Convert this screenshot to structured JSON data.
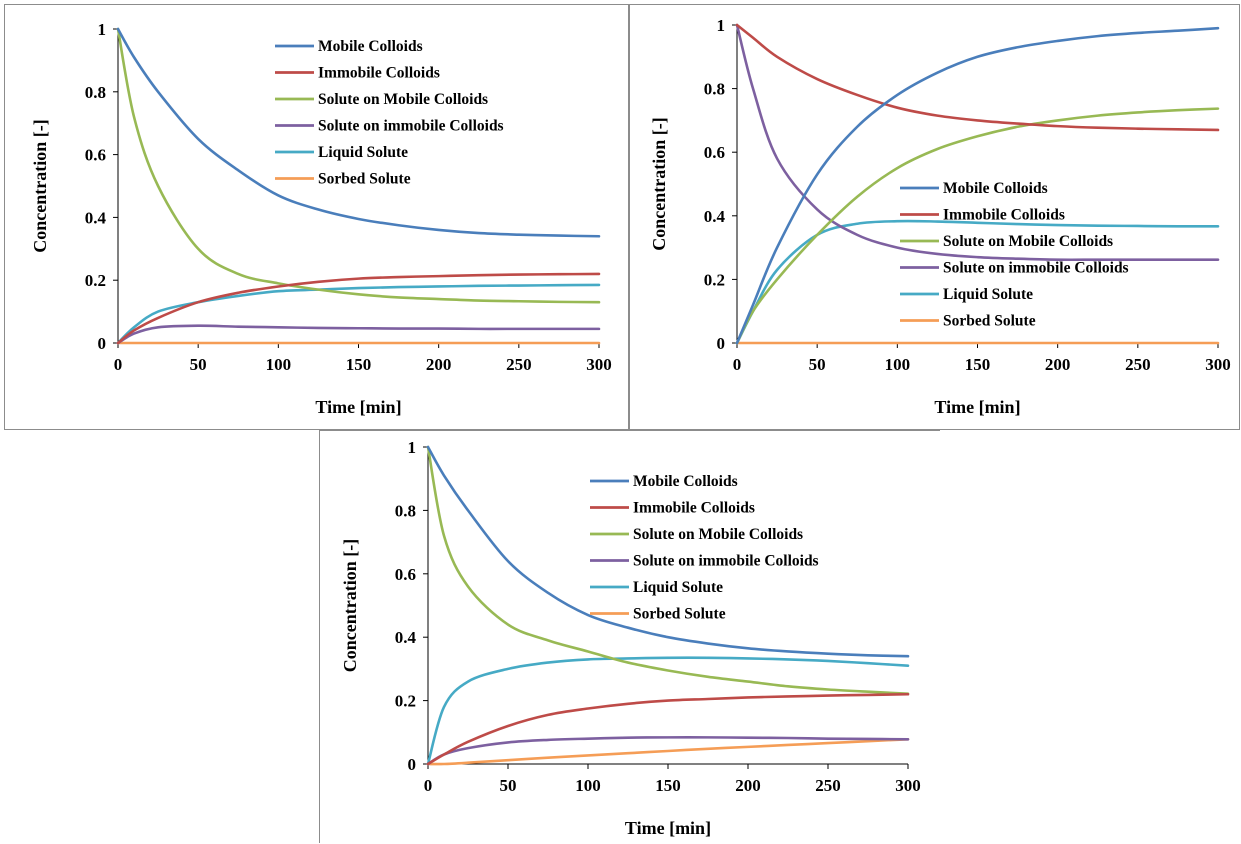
{
  "chart_data": [
    {
      "type": "line",
      "xlabel": "Time [min]",
      "ylabel": "Concentration [-]",
      "xlim": [
        0,
        300
      ],
      "ylim": [
        0,
        1
      ],
      "xticks": [
        "0",
        "50",
        "100",
        "150",
        "200",
        "250",
        "300"
      ],
      "yticks": [
        "0",
        "0.2",
        "0.4",
        "0.6",
        "0.8",
        "1"
      ],
      "legend": "top-right",
      "x": [
        0,
        10,
        25,
        50,
        75,
        100,
        125,
        150,
        175,
        200,
        225,
        250,
        275,
        300
      ],
      "series": [
        {
          "name": "Mobile Colloids",
          "color": "#4A7EBB",
          "values": [
            1.0,
            0.91,
            0.8,
            0.65,
            0.55,
            0.47,
            0.425,
            0.395,
            0.375,
            0.36,
            0.35,
            0.345,
            0.342,
            0.34
          ]
        },
        {
          "name": "Immobile Colloids",
          "color": "#BE4B48",
          "values": [
            0.0,
            0.04,
            0.08,
            0.13,
            0.16,
            0.18,
            0.195,
            0.205,
            0.21,
            0.213,
            0.216,
            0.218,
            0.219,
            0.22
          ]
        },
        {
          "name": "Solute on Mobile Colloids",
          "color": "#98B954",
          "values": [
            1.0,
            0.72,
            0.5,
            0.3,
            0.22,
            0.19,
            0.17,
            0.155,
            0.145,
            0.14,
            0.135,
            0.133,
            0.131,
            0.13
          ]
        },
        {
          "name": "Solute on immobile Colloids",
          "color": "#7D60A0",
          "values": [
            0.0,
            0.03,
            0.05,
            0.055,
            0.052,
            0.05,
            0.048,
            0.047,
            0.046,
            0.046,
            0.045,
            0.045,
            0.045,
            0.045
          ]
        },
        {
          "name": "Liquid Solute",
          "color": "#46AAC5",
          "values": [
            0.0,
            0.05,
            0.1,
            0.13,
            0.15,
            0.165,
            0.17,
            0.175,
            0.178,
            0.18,
            0.182,
            0.183,
            0.184,
            0.185
          ]
        },
        {
          "name": "Sorbed Solute",
          "color": "#F59D56",
          "values": [
            0.0,
            0.0,
            0.0,
            0.0,
            0.0,
            0.0,
            0.0,
            0.0,
            0.0,
            0.0,
            0.0,
            0.0,
            0.0,
            0.0
          ]
        }
      ]
    },
    {
      "type": "line",
      "xlabel": "Time [min]",
      "ylabel": "Concentration [-]",
      "xlim": [
        0,
        300
      ],
      "ylim": [
        0,
        1
      ],
      "xticks": [
        "0",
        "50",
        "100",
        "150",
        "200",
        "250",
        "300"
      ],
      "yticks": [
        "0",
        "0.2",
        "0.4",
        "0.6",
        "0.8",
        "1"
      ],
      "legend": "center-right",
      "x": [
        0,
        10,
        25,
        50,
        75,
        100,
        125,
        150,
        175,
        200,
        225,
        250,
        275,
        300
      ],
      "series": [
        {
          "name": "Mobile Colloids",
          "color": "#4A7EBB",
          "values": [
            0.0,
            0.12,
            0.3,
            0.53,
            0.68,
            0.78,
            0.85,
            0.9,
            0.93,
            0.95,
            0.965,
            0.975,
            0.982,
            0.99
          ]
        },
        {
          "name": "Immobile Colloids",
          "color": "#BE4B48",
          "values": [
            1.0,
            0.96,
            0.9,
            0.83,
            0.78,
            0.74,
            0.715,
            0.7,
            0.69,
            0.682,
            0.677,
            0.674,
            0.672,
            0.67
          ]
        },
        {
          "name": "Solute on Mobile Colloids",
          "color": "#98B954",
          "values": [
            0.0,
            0.1,
            0.2,
            0.34,
            0.46,
            0.55,
            0.61,
            0.65,
            0.68,
            0.7,
            0.715,
            0.725,
            0.732,
            0.737
          ]
        },
        {
          "name": "Solute on immobile Colloids",
          "color": "#7D60A0",
          "values": [
            1.0,
            0.8,
            0.58,
            0.42,
            0.34,
            0.3,
            0.28,
            0.27,
            0.265,
            0.262,
            0.262,
            0.262,
            0.262,
            0.262
          ]
        },
        {
          "name": "Liquid Solute",
          "color": "#46AAC5",
          "values": [
            0.0,
            0.1,
            0.23,
            0.34,
            0.375,
            0.383,
            0.382,
            0.378,
            0.374,
            0.371,
            0.369,
            0.368,
            0.367,
            0.367
          ]
        },
        {
          "name": "Sorbed Solute",
          "color": "#F59D56",
          "values": [
            0.0,
            0.0,
            0.0,
            0.0,
            0.0,
            0.0,
            0.0,
            0.0,
            0.0,
            0.0,
            0.0,
            0.0,
            0.0,
            0.0
          ]
        }
      ]
    },
    {
      "type": "line",
      "xlabel": "Time [min]",
      "ylabel": "Concentration [-]",
      "xlim": [
        0,
        300
      ],
      "ylim": [
        0,
        1
      ],
      "xticks": [
        "0",
        "50",
        "100",
        "150",
        "200",
        "250",
        "300"
      ],
      "yticks": [
        "0",
        "0.2",
        "0.4",
        "0.6",
        "0.8",
        "1"
      ],
      "legend": "top-right",
      "x": [
        0,
        10,
        25,
        50,
        75,
        100,
        125,
        150,
        175,
        200,
        225,
        250,
        275,
        300
      ],
      "series": [
        {
          "name": "Mobile Colloids",
          "color": "#4A7EBB",
          "values": [
            1.0,
            0.91,
            0.8,
            0.64,
            0.54,
            0.47,
            0.43,
            0.4,
            0.38,
            0.365,
            0.355,
            0.348,
            0.343,
            0.34
          ]
        },
        {
          "name": "Immobile Colloids",
          "color": "#BE4B48",
          "values": [
            0.0,
            0.03,
            0.07,
            0.12,
            0.155,
            0.175,
            0.19,
            0.2,
            0.205,
            0.21,
            0.213,
            0.216,
            0.218,
            0.22
          ]
        },
        {
          "name": "Solute on Mobile Colloids",
          "color": "#98B954",
          "values": [
            1.0,
            0.72,
            0.56,
            0.44,
            0.39,
            0.355,
            0.32,
            0.295,
            0.275,
            0.26,
            0.245,
            0.235,
            0.228,
            0.222
          ]
        },
        {
          "name": "Solute on immobile Colloids",
          "color": "#7D60A0",
          "values": [
            0.0,
            0.03,
            0.05,
            0.068,
            0.076,
            0.08,
            0.083,
            0.084,
            0.084,
            0.083,
            0.082,
            0.08,
            0.079,
            0.078
          ]
        },
        {
          "name": "Liquid Solute",
          "color": "#46AAC5",
          "values": [
            0.0,
            0.18,
            0.26,
            0.3,
            0.32,
            0.33,
            0.333,
            0.335,
            0.335,
            0.333,
            0.33,
            0.325,
            0.318,
            0.31
          ]
        },
        {
          "name": "Sorbed Solute",
          "color": "#F59D56",
          "values": [
            0.0,
            0.0,
            0.004,
            0.012,
            0.02,
            0.027,
            0.034,
            0.041,
            0.048,
            0.054,
            0.06,
            0.066,
            0.072,
            0.078
          ]
        }
      ]
    }
  ]
}
